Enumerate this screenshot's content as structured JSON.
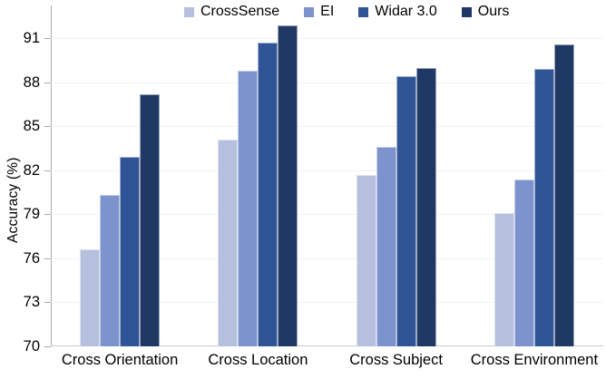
{
  "chart_data": {
    "type": "bar",
    "title": "",
    "xlabel": "",
    "ylabel": "Accuracy (%)",
    "categories": [
      "Cross Orientation",
      "Cross Location",
      "Cross Subject",
      "Cross Environment"
    ],
    "series": [
      {
        "name": "CrossSense",
        "color": "#b5bfde",
        "values": [
          76.6,
          84.1,
          81.7,
          79.1
        ]
      },
      {
        "name": "EI",
        "color": "#7c93cd",
        "values": [
          80.3,
          88.8,
          83.6,
          81.4
        ]
      },
      {
        "name": "Widar 3.0",
        "color": "#2f5597",
        "values": [
          82.9,
          90.7,
          88.4,
          88.9
        ]
      },
      {
        "name": "Ours",
        "color": "#203864",
        "values": [
          87.2,
          91.9,
          89.0,
          90.6
        ]
      }
    ],
    "yticks": [
      70,
      73,
      76,
      79,
      82,
      85,
      88,
      91
    ],
    "ylim": [
      70,
      93.6
    ],
    "grid": true,
    "legend_position": "top"
  }
}
